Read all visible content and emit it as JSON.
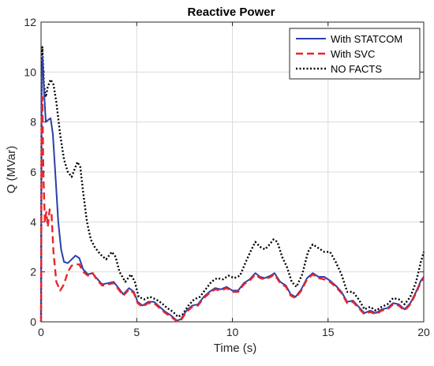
{
  "chart_data": {
    "type": "line",
    "title": "Reactive Power",
    "xlabel": "Time (s)",
    "ylabel": "Q (MVar)",
    "xlim": [
      0,
      20
    ],
    "ylim": [
      0,
      12
    ],
    "xticks": [
      0,
      5,
      10,
      15,
      20
    ],
    "yticks": [
      0,
      2,
      4,
      6,
      8,
      10,
      12
    ],
    "grid": true,
    "legend_position": "top-right",
    "series": [
      {
        "name": "With STATCOM",
        "color": "#2b3fa8",
        "style": "solid",
        "points": [
          [
            0,
            0
          ],
          [
            0.03,
            9.8
          ],
          [
            0.08,
            10.6
          ],
          [
            0.15,
            9.3
          ],
          [
            0.25,
            8.0
          ],
          [
            0.4,
            8.1
          ],
          [
            0.5,
            8.15
          ],
          [
            0.62,
            7.5
          ],
          [
            0.75,
            5.9
          ],
          [
            0.9,
            4.0
          ],
          [
            1.05,
            2.9
          ],
          [
            1.2,
            2.4
          ],
          [
            1.4,
            2.35
          ],
          [
            1.6,
            2.5
          ],
          [
            1.8,
            2.65
          ],
          [
            2.0,
            2.55
          ],
          [
            2.2,
            2.1
          ],
          [
            2.45,
            1.9
          ],
          [
            2.7,
            1.95
          ],
          [
            2.9,
            1.75
          ],
          [
            3.2,
            1.5
          ],
          [
            3.5,
            1.55
          ],
          [
            3.8,
            1.6
          ],
          [
            4.0,
            1.4
          ],
          [
            4.3,
            1.1
          ],
          [
            4.6,
            1.35
          ],
          [
            4.85,
            1.2
          ],
          [
            5.05,
            0.8
          ],
          [
            5.3,
            0.65
          ],
          [
            5.6,
            0.8
          ],
          [
            5.9,
            0.8
          ],
          [
            6.2,
            0.6
          ],
          [
            6.5,
            0.4
          ],
          [
            6.8,
            0.25
          ],
          [
            7.1,
            0.05
          ],
          [
            7.3,
            0.1
          ],
          [
            7.6,
            0.45
          ],
          [
            7.9,
            0.65
          ],
          [
            8.2,
            0.7
          ],
          [
            8.5,
            1.0
          ],
          [
            8.8,
            1.2
          ],
          [
            9.1,
            1.35
          ],
          [
            9.4,
            1.3
          ],
          [
            9.7,
            1.4
          ],
          [
            10.0,
            1.25
          ],
          [
            10.3,
            1.25
          ],
          [
            10.6,
            1.55
          ],
          [
            10.9,
            1.7
          ],
          [
            11.2,
            1.95
          ],
          [
            11.45,
            1.8
          ],
          [
            11.7,
            1.75
          ],
          [
            12.0,
            1.85
          ],
          [
            12.2,
            1.95
          ],
          [
            12.5,
            1.6
          ],
          [
            12.8,
            1.45
          ],
          [
            13.05,
            1.1
          ],
          [
            13.3,
            1.0
          ],
          [
            13.6,
            1.3
          ],
          [
            13.9,
            1.75
          ],
          [
            14.2,
            1.95
          ],
          [
            14.5,
            1.8
          ],
          [
            14.8,
            1.8
          ],
          [
            15.1,
            1.65
          ],
          [
            15.4,
            1.45
          ],
          [
            15.7,
            1.2
          ],
          [
            16.0,
            0.8
          ],
          [
            16.3,
            0.85
          ],
          [
            16.6,
            0.6
          ],
          [
            16.9,
            0.35
          ],
          [
            17.2,
            0.45
          ],
          [
            17.5,
            0.35
          ],
          [
            17.8,
            0.5
          ],
          [
            18.1,
            0.55
          ],
          [
            18.4,
            0.75
          ],
          [
            18.7,
            0.7
          ],
          [
            19.0,
            0.5
          ],
          [
            19.3,
            0.75
          ],
          [
            19.6,
            1.2
          ],
          [
            19.85,
            1.65
          ],
          [
            20.0,
            1.8
          ]
        ]
      },
      {
        "name": "With SVC",
        "color": "#e8262a",
        "style": "dashed",
        "points": [
          [
            0,
            0
          ],
          [
            0.03,
            8.0
          ],
          [
            0.07,
            9.0
          ],
          [
            0.12,
            6.0
          ],
          [
            0.2,
            4.0
          ],
          [
            0.28,
            4.4
          ],
          [
            0.35,
            3.8
          ],
          [
            0.45,
            4.5
          ],
          [
            0.55,
            4.3
          ],
          [
            0.65,
            2.8
          ],
          [
            0.8,
            1.6
          ],
          [
            1.0,
            1.25
          ],
          [
            1.2,
            1.5
          ],
          [
            1.4,
            2.0
          ],
          [
            1.6,
            2.25
          ],
          [
            1.8,
            2.3
          ],
          [
            2.0,
            2.3
          ],
          [
            2.2,
            2.0
          ],
          [
            2.45,
            1.85
          ],
          [
            2.7,
            1.95
          ],
          [
            2.9,
            1.7
          ],
          [
            3.2,
            1.45
          ],
          [
            3.5,
            1.5
          ],
          [
            3.8,
            1.55
          ],
          [
            4.0,
            1.35
          ],
          [
            4.3,
            1.05
          ],
          [
            4.6,
            1.3
          ],
          [
            4.85,
            1.15
          ],
          [
            5.05,
            0.75
          ],
          [
            5.3,
            0.6
          ],
          [
            5.6,
            0.75
          ],
          [
            5.9,
            0.75
          ],
          [
            6.2,
            0.55
          ],
          [
            6.5,
            0.35
          ],
          [
            6.8,
            0.2
          ],
          [
            7.1,
            0.02
          ],
          [
            7.3,
            0.05
          ],
          [
            7.6,
            0.4
          ],
          [
            7.9,
            0.6
          ],
          [
            8.2,
            0.65
          ],
          [
            8.5,
            0.95
          ],
          [
            8.8,
            1.15
          ],
          [
            9.1,
            1.3
          ],
          [
            9.4,
            1.25
          ],
          [
            9.7,
            1.35
          ],
          [
            10.0,
            1.2
          ],
          [
            10.3,
            1.2
          ],
          [
            10.6,
            1.5
          ],
          [
            10.9,
            1.65
          ],
          [
            11.2,
            1.9
          ],
          [
            11.45,
            1.75
          ],
          [
            11.7,
            1.7
          ],
          [
            12.0,
            1.8
          ],
          [
            12.2,
            1.9
          ],
          [
            12.5,
            1.55
          ],
          [
            12.8,
            1.4
          ],
          [
            13.05,
            1.05
          ],
          [
            13.3,
            0.95
          ],
          [
            13.6,
            1.25
          ],
          [
            13.9,
            1.7
          ],
          [
            14.2,
            1.9
          ],
          [
            14.5,
            1.75
          ],
          [
            14.8,
            1.7
          ],
          [
            15.1,
            1.6
          ],
          [
            15.4,
            1.4
          ],
          [
            15.7,
            1.15
          ],
          [
            16.0,
            0.75
          ],
          [
            16.3,
            0.8
          ],
          [
            16.6,
            0.55
          ],
          [
            16.9,
            0.3
          ],
          [
            17.2,
            0.4
          ],
          [
            17.5,
            0.3
          ],
          [
            17.8,
            0.45
          ],
          [
            18.1,
            0.5
          ],
          [
            18.4,
            0.7
          ],
          [
            18.7,
            0.65
          ],
          [
            19.0,
            0.45
          ],
          [
            19.3,
            0.7
          ],
          [
            19.6,
            1.15
          ],
          [
            19.85,
            1.6
          ],
          [
            20.0,
            1.75
          ]
        ]
      },
      {
        "name": "NO FACTS",
        "color": "#000000",
        "style": "dotted",
        "points": [
          [
            0,
            0
          ],
          [
            0.03,
            10.0
          ],
          [
            0.07,
            11.0
          ],
          [
            0.15,
            9.5
          ],
          [
            0.25,
            9.0
          ],
          [
            0.35,
            9.4
          ],
          [
            0.5,
            9.7
          ],
          [
            0.65,
            9.5
          ],
          [
            0.8,
            8.8
          ],
          [
            1.0,
            7.5
          ],
          [
            1.2,
            6.5
          ],
          [
            1.4,
            6.0
          ],
          [
            1.6,
            5.8
          ],
          [
            1.75,
            6.1
          ],
          [
            1.9,
            6.4
          ],
          [
            2.05,
            6.2
          ],
          [
            2.2,
            5.2
          ],
          [
            2.4,
            4.0
          ],
          [
            2.6,
            3.3
          ],
          [
            2.8,
            3.0
          ],
          [
            3.1,
            2.7
          ],
          [
            3.4,
            2.5
          ],
          [
            3.7,
            2.8
          ],
          [
            3.9,
            2.6
          ],
          [
            4.1,
            2.0
          ],
          [
            4.4,
            1.6
          ],
          [
            4.7,
            1.9
          ],
          [
            4.9,
            1.6
          ],
          [
            5.1,
            1.0
          ],
          [
            5.4,
            0.9
          ],
          [
            5.7,
            1.0
          ],
          [
            6.0,
            0.9
          ],
          [
            6.3,
            0.75
          ],
          [
            6.6,
            0.55
          ],
          [
            6.9,
            0.4
          ],
          [
            7.15,
            0.2
          ],
          [
            7.4,
            0.3
          ],
          [
            7.7,
            0.65
          ],
          [
            8.0,
            0.9
          ],
          [
            8.3,
            1.0
          ],
          [
            8.6,
            1.3
          ],
          [
            8.9,
            1.6
          ],
          [
            9.2,
            1.75
          ],
          [
            9.5,
            1.7
          ],
          [
            9.8,
            1.85
          ],
          [
            10.1,
            1.75
          ],
          [
            10.4,
            1.85
          ],
          [
            10.7,
            2.4
          ],
          [
            11.0,
            2.9
          ],
          [
            11.2,
            3.2
          ],
          [
            11.45,
            3.0
          ],
          [
            11.7,
            2.9
          ],
          [
            11.95,
            3.1
          ],
          [
            12.15,
            3.3
          ],
          [
            12.35,
            3.2
          ],
          [
            12.6,
            2.6
          ],
          [
            12.85,
            2.2
          ],
          [
            13.1,
            1.6
          ],
          [
            13.35,
            1.4
          ],
          [
            13.65,
            1.9
          ],
          [
            13.95,
            2.8
          ],
          [
            14.2,
            3.1
          ],
          [
            14.5,
            2.95
          ],
          [
            14.8,
            2.8
          ],
          [
            15.1,
            2.8
          ],
          [
            15.4,
            2.4
          ],
          [
            15.7,
            1.9
          ],
          [
            16.0,
            1.2
          ],
          [
            16.3,
            1.2
          ],
          [
            16.6,
            0.9
          ],
          [
            16.9,
            0.5
          ],
          [
            17.2,
            0.6
          ],
          [
            17.5,
            0.45
          ],
          [
            17.8,
            0.6
          ],
          [
            18.1,
            0.7
          ],
          [
            18.4,
            0.95
          ],
          [
            18.7,
            0.9
          ],
          [
            19.0,
            0.7
          ],
          [
            19.3,
            1.0
          ],
          [
            19.6,
            1.6
          ],
          [
            19.85,
            2.4
          ],
          [
            20.0,
            2.8
          ]
        ]
      }
    ]
  }
}
